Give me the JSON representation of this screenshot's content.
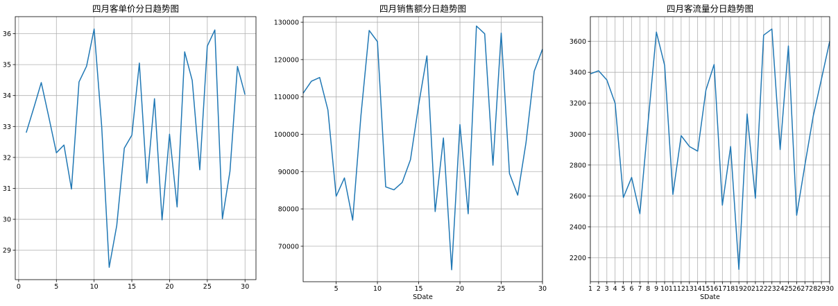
{
  "chart_data": [
    {
      "type": "line",
      "title": "四月客单价分日趋势图",
      "xlabel": "",
      "ylabel": "",
      "x": [
        1,
        2,
        3,
        4,
        5,
        6,
        7,
        8,
        9,
        10,
        11,
        12,
        13,
        14,
        15,
        16,
        17,
        18,
        19,
        20,
        21,
        22,
        23,
        24,
        25,
        26,
        27,
        28,
        29,
        30
      ],
      "values": [
        32.8,
        33.6,
        34.42,
        33.3,
        32.15,
        32.4,
        30.98,
        34.44,
        34.95,
        36.15,
        33.0,
        28.45,
        29.8,
        32.3,
        32.72,
        35.05,
        31.17,
        33.9,
        29.98,
        32.75,
        30.4,
        35.41,
        34.49,
        31.6,
        35.6,
        36.12,
        30.02,
        31.55,
        34.94,
        34.03
      ],
      "xlim": [
        -0.45,
        31.45
      ],
      "ylim": [
        28.05,
        36.55
      ],
      "xticks": [
        0,
        5,
        10,
        15,
        20,
        25,
        30
      ],
      "yticks": [
        29,
        30,
        31,
        32,
        33,
        34,
        35,
        36
      ],
      "grid": true,
      "color": "#1f77b4"
    },
    {
      "type": "line",
      "title": "四月销售额分日趋势图",
      "xlabel": "SDate",
      "ylabel": "",
      "x": [
        1,
        2,
        3,
        4,
        5,
        6,
        7,
        8,
        9,
        10,
        11,
        12,
        13,
        14,
        15,
        16,
        17,
        18,
        19,
        20,
        21,
        22,
        23,
        24,
        25,
        26,
        27,
        28,
        29,
        30
      ],
      "values": [
        111000,
        114200,
        115200,
        106500,
        83400,
        88300,
        77000,
        105000,
        127800,
        124800,
        85900,
        85100,
        87100,
        93200,
        108000,
        121000,
        79300,
        99000,
        63700,
        102600,
        78700,
        129000,
        126900,
        91700,
        127100,
        89500,
        83700,
        97700,
        116900,
        122800
      ],
      "xlim": [
        1,
        30
      ],
      "ylim": [
        60500,
        131500
      ],
      "xticks": [
        5,
        10,
        15,
        20,
        25,
        30
      ],
      "yticks": [
        70000,
        80000,
        90000,
        100000,
        110000,
        120000,
        130000
      ],
      "grid": true,
      "color": "#1f77b4"
    },
    {
      "type": "line",
      "title": "四月客流量分日趋势图",
      "xlabel": "SDate",
      "ylabel": "",
      "x": [
        1,
        2,
        3,
        4,
        5,
        6,
        7,
        8,
        9,
        10,
        11,
        12,
        13,
        14,
        15,
        16,
        17,
        18,
        19,
        20,
        21,
        22,
        23,
        24,
        25,
        26,
        27,
        28,
        29,
        30
      ],
      "values": [
        3390,
        3410,
        3350,
        3200,
        2590,
        2720,
        2485,
        3080,
        3660,
        3445,
        2610,
        2990,
        2920,
        2890,
        3285,
        3450,
        2540,
        2920,
        2125,
        3130,
        2585,
        3640,
        3680,
        2900,
        3570,
        2475,
        2800,
        3115,
        3355,
        3600
      ],
      "xlim": [
        1,
        30
      ],
      "ylim": [
        2045,
        3760
      ],
      "xticks": [
        1,
        2,
        3,
        4,
        5,
        6,
        7,
        8,
        9,
        10,
        11,
        12,
        13,
        14,
        15,
        16,
        17,
        18,
        19,
        20,
        21,
        22,
        23,
        24,
        25,
        26,
        27,
        28,
        29,
        30
      ],
      "yticks": [
        2200,
        2400,
        2600,
        2800,
        3000,
        3200,
        3400,
        3600
      ],
      "grid": true,
      "color": "#1f77b4"
    }
  ]
}
